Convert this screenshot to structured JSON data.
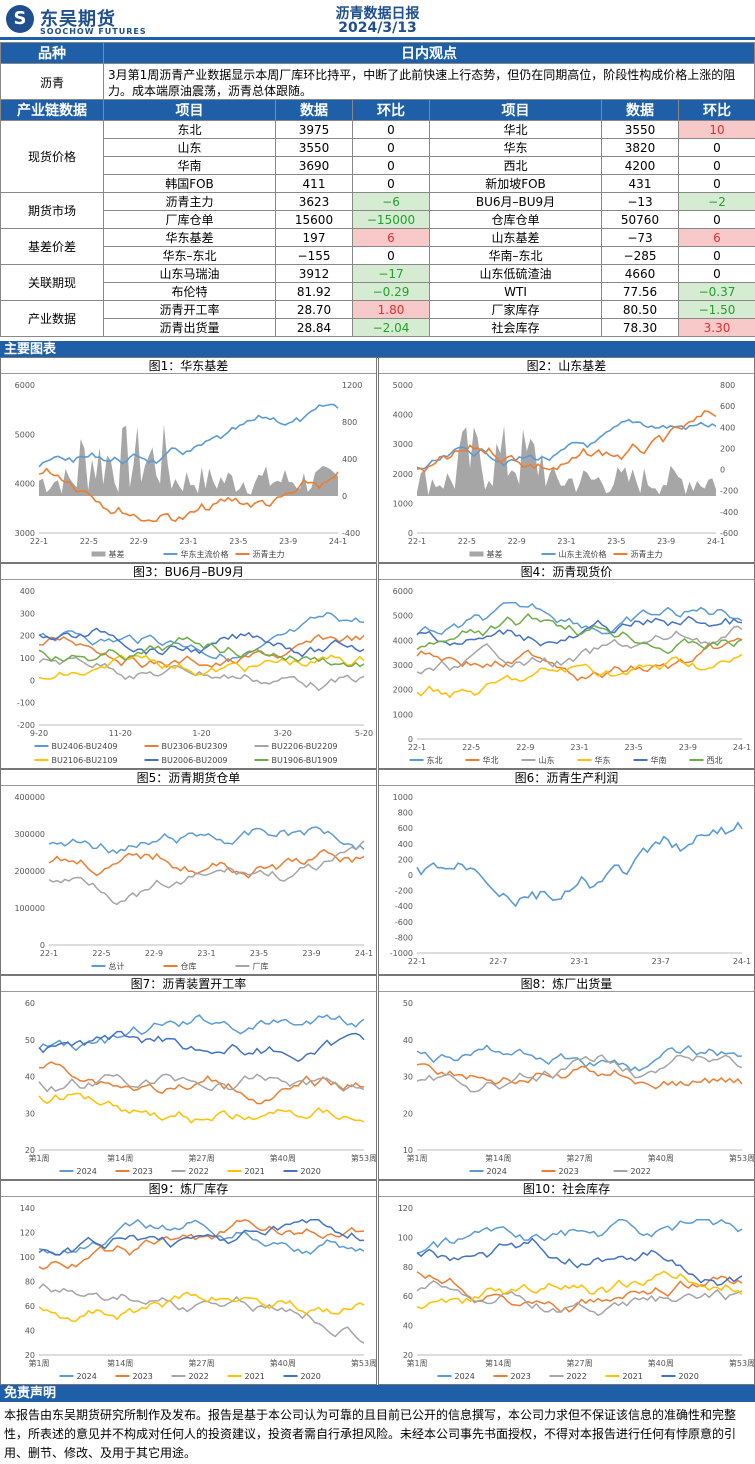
{
  "header": {
    "logo_cn": "东吴期货",
    "logo_en": "SOOCHOW FUTURES",
    "title": "沥青数据日报",
    "date": "2024/3/13"
  },
  "intro": {
    "col_variety": "品种",
    "col_view": "日内观点",
    "variety": "沥青",
    "view": "3月第1周沥青产业数据显示本周厂库环比持平，中断了此前快速上行态势，但仍在同期高位，阶段性构成价格上涨的阻力。成本端原油震荡，沥青总体跟随。"
  },
  "table": {
    "headers": [
      "产业链数据",
      "项目",
      "数据",
      "环比",
      "项目",
      "数据",
      "环比"
    ],
    "groups": [
      {
        "name": "现货价格",
        "rows": [
          [
            "东北",
            "3975",
            "0",
            "华北",
            "3550",
            "10"
          ],
          [
            "山东",
            "3550",
            "0",
            "华东",
            "3820",
            "0"
          ],
          [
            "华南",
            "3690",
            "0",
            "西北",
            "4200",
            "0"
          ],
          [
            "韩国FOB",
            "411",
            "0",
            "新加坡FOB",
            "431",
            "0"
          ]
        ]
      },
      {
        "name": "期货市场",
        "rows": [
          [
            "沥青主力",
            "3623",
            "−6",
            "BU6月–BU9月",
            "−13",
            "−2"
          ],
          [
            "厂库仓单",
            "15600",
            "−15000",
            "仓库仓单",
            "50760",
            "0"
          ]
        ]
      },
      {
        "name": "基差价差",
        "rows": [
          [
            "华东基差",
            "197",
            "6",
            "山东基差",
            "−73",
            "6"
          ],
          [
            "华东–东北",
            "−155",
            "0",
            "华南–东北",
            "−285",
            "0"
          ]
        ]
      },
      {
        "name": "关联期现",
        "rows": [
          [
            "山东马瑞油",
            "3912",
            "−17",
            "山东低硫渣油",
            "4660",
            "0"
          ],
          [
            "布伦特",
            "81.92",
            "−0.29",
            "WTI",
            "77.56",
            "−0.37"
          ]
        ]
      },
      {
        "name": "产业数据",
        "rows": [
          [
            "沥青开工率",
            "28.70",
            "1.80",
            "厂家库存",
            "80.50",
            "−1.50"
          ],
          [
            "沥青出货量",
            "28.84",
            "−2.04",
            "社会库存",
            "78.30",
            "3.30"
          ]
        ]
      }
    ]
  },
  "section_charts": "主要图表",
  "colors": {
    "blue": "#5b9bd5",
    "orange": "#ed7d31",
    "gray": "#a5a5a5",
    "yellow": "#ffc000",
    "dblue": "#4472c4",
    "green": "#70ad47",
    "area": "#a6a6a6"
  },
  "charts": [
    {
      "title": "图1：华东基差",
      "xticks": [
        "22-1",
        "22-5",
        "22-9",
        "23-1",
        "23-5",
        "23-9",
        "24-1"
      ],
      "yleft": [
        "6000",
        "5000",
        "4000",
        "3000"
      ],
      "yright": [
        "1200",
        "800",
        "400",
        "0",
        "-400"
      ],
      "legend": [
        "基差",
        "华东主流价格",
        "沥青主力"
      ]
    },
    {
      "title": "图2：山东基差",
      "xticks": [
        "22-1",
        "22-5",
        "22-9",
        "23-1",
        "23-5",
        "23-9",
        "24-1"
      ],
      "yleft": [
        "5000",
        "4000",
        "3000",
        "2000",
        "1000",
        "0"
      ],
      "yright": [
        "800",
        "600",
        "400",
        "200",
        "0",
        "-200",
        "-400",
        "-600"
      ],
      "legend": [
        "基差",
        "山东主流价格",
        "沥青主力"
      ]
    },
    {
      "title": "图3：BU6月–BU9月",
      "xticks": [
        "9-20",
        "11-20",
        "1-20",
        "3-20",
        "5-20"
      ],
      "yleft": [
        "400",
        "300",
        "200",
        "100",
        "0",
        "-100",
        "-200"
      ],
      "legend": [
        "BU2406-BU2409",
        "BU2306-BU2309",
        "BU2206-BU2209",
        "BU2106-BU2109",
        "BU2006-BU2009",
        "BU1906-BU1909"
      ]
    },
    {
      "title": "图4：沥青现货价",
      "xticks": [
        "22-1",
        "22-5",
        "22-9",
        "23-1",
        "23-5",
        "23-9",
        "24-1"
      ],
      "yleft": [
        "6000",
        "5000",
        "4000",
        "3000",
        "2000",
        "1000",
        "0"
      ],
      "legend": [
        "东北",
        "华北",
        "山东",
        "华东",
        "华南",
        "西北"
      ]
    },
    {
      "title": "图5：沥青期货仓单",
      "xticks": [
        "22-1",
        "22-5",
        "22-9",
        "23-1",
        "23-5",
        "23-9",
        "24-1"
      ],
      "yleft": [
        "400000",
        "300000",
        "200000",
        "100000",
        "0"
      ],
      "legend": [
        "总计",
        "仓库",
        "厂库"
      ]
    },
    {
      "title": "图6：沥青生产利润",
      "xticks": [
        "22-1",
        "22-7",
        "23-1",
        "23-7",
        "24-1"
      ],
      "yleft": [
        "1000",
        "800",
        "600",
        "400",
        "200",
        "0",
        "-200",
        "-400",
        "-600",
        "-800",
        "-1000"
      ],
      "legend": []
    },
    {
      "title": "图7：沥青装置开工率",
      "xticks": [
        "第1周",
        "第14周",
        "第27周",
        "第40周",
        "第53周"
      ],
      "yleft": [
        "60",
        "50",
        "40",
        "30",
        "20"
      ],
      "legend": [
        "2024",
        "2023",
        "2022",
        "2021",
        "2020"
      ]
    },
    {
      "title": "图8：炼厂出货量",
      "xticks": [
        "第1周",
        "第14周",
        "第27周",
        "第40周",
        "第53周"
      ],
      "yleft": [
        "50",
        "40",
        "30",
        "20",
        "10"
      ],
      "legend": [
        "2024",
        "2023",
        "2022"
      ]
    },
    {
      "title": "图9：炼厂库存",
      "xticks": [
        "第1周",
        "第14周",
        "第27周",
        "第40周",
        "第53周"
      ],
      "yleft": [
        "140",
        "120",
        "100",
        "80",
        "60",
        "40",
        "20"
      ],
      "legend": [
        "2024",
        "2023",
        "2022",
        "2021",
        "2020"
      ]
    },
    {
      "title": "图10：社会库存",
      "xticks": [
        "第1周",
        "第14周",
        "第27周",
        "第40周",
        "第53周"
      ],
      "yleft": [
        "120",
        "100",
        "80",
        "60",
        "40",
        "20"
      ],
      "legend": [
        "2024",
        "2023",
        "2022",
        "2021",
        "2020"
      ]
    }
  ],
  "disclaimer": {
    "title": "免责声明",
    "text": "本报告由东吴期货研究所制作及发布。报告是基于本公司认为可靠的且目前已公开的信息撰写，本公司力求但不保证该信息的准确性和完整性，所表述的意见并不构成对任何人的投资建议，投资者需自行承担风险。未经本公司事先书面授权，不得对本报告进行任何有悖原意的引用、删节、修改、及用于其它用途。"
  }
}
